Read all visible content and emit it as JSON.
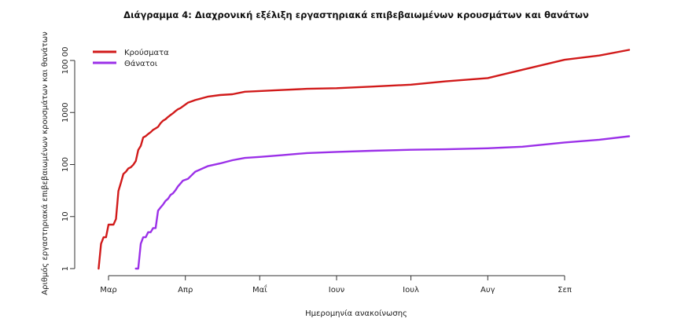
{
  "chart_data": {
    "type": "line",
    "title": "Διάγραμμα 4: Διαχρονική εξέλιξη εργαστηριακά επιβεβαιωμένων κρουσμάτων και θανάτων",
    "xlabel": "Ημερομηνία ανακοίνωσης",
    "ylabel": "Αριθμός εργαστηριακά επιβεβαιωμένων κρουσμάτων και θανάτων",
    "y_scale": "log",
    "ylim": [
      0.8,
      16000
    ],
    "y_ticks": [
      1,
      10,
      100,
      1000,
      10000
    ],
    "y_tick_labels": [
      "1",
      "10",
      "100",
      "1000",
      "100 00"
    ],
    "x_ticks": [
      "2020-03-01",
      "2020-04-01",
      "2020-05-01",
      "2020-06-01",
      "2020-07-01",
      "2020-08-01",
      "2020-09-01"
    ],
    "x_tick_labels": [
      "Μαρ",
      "Απρ",
      "Μαΐ",
      "Ιουν",
      "Ιουλ",
      "Αυγ",
      "Σεπ"
    ],
    "xlim": [
      "2020-02-24",
      "2020-09-30"
    ],
    "grid": false,
    "legend": "top-left",
    "series": [
      {
        "name": "Κρούσματα",
        "color": "#d11a1a",
        "points": [
          [
            "2020-02-26",
            1
          ],
          [
            "2020-02-27",
            3
          ],
          [
            "2020-02-28",
            4
          ],
          [
            "2020-02-29",
            4
          ],
          [
            "2020-03-01",
            7
          ],
          [
            "2020-03-03",
            7
          ],
          [
            "2020-03-04",
            9
          ],
          [
            "2020-03-05",
            31
          ],
          [
            "2020-03-06",
            45
          ],
          [
            "2020-03-07",
            66
          ],
          [
            "2020-03-08",
            73
          ],
          [
            "2020-03-09",
            84
          ],
          [
            "2020-03-10",
            89
          ],
          [
            "2020-03-11",
            99
          ],
          [
            "2020-03-12",
            117
          ],
          [
            "2020-03-13",
            190
          ],
          [
            "2020-03-14",
            228
          ],
          [
            "2020-03-15",
            331
          ],
          [
            "2020-03-16",
            352
          ],
          [
            "2020-03-17",
            387
          ],
          [
            "2020-03-18",
            418
          ],
          [
            "2020-03-19",
            464
          ],
          [
            "2020-03-20",
            495
          ],
          [
            "2020-03-21",
            530
          ],
          [
            "2020-03-22",
            624
          ],
          [
            "2020-03-23",
            695
          ],
          [
            "2020-03-24",
            743
          ],
          [
            "2020-03-25",
            821
          ],
          [
            "2020-03-26",
            892
          ],
          [
            "2020-03-27",
            966
          ],
          [
            "2020-03-28",
            1061
          ],
          [
            "2020-03-29",
            1156
          ],
          [
            "2020-03-30",
            1212
          ],
          [
            "2020-03-31",
            1314
          ],
          [
            "2020-04-02",
            1544
          ],
          [
            "2020-04-05",
            1735
          ],
          [
            "2020-04-10",
            2011
          ],
          [
            "2020-04-15",
            2170
          ],
          [
            "2020-04-20",
            2245
          ],
          [
            "2020-04-25",
            2506
          ],
          [
            "2020-05-01",
            2591
          ],
          [
            "2020-05-10",
            2710
          ],
          [
            "2020-05-20",
            2850
          ],
          [
            "2020-06-01",
            2937
          ],
          [
            "2020-06-15",
            3148
          ],
          [
            "2020-07-01",
            3432
          ],
          [
            "2020-07-15",
            3964
          ],
          [
            "2020-08-01",
            4587
          ],
          [
            "2020-08-15",
            6632
          ],
          [
            "2020-09-01",
            10317
          ],
          [
            "2020-09-15",
            12452
          ],
          [
            "2020-09-27",
            16000
          ]
        ]
      },
      {
        "name": "Θάνατοι",
        "color": "#9b30e8",
        "points": [
          [
            "2020-03-12",
            1
          ],
          [
            "2020-03-13",
            1
          ],
          [
            "2020-03-14",
            3
          ],
          [
            "2020-03-15",
            4
          ],
          [
            "2020-03-16",
            4
          ],
          [
            "2020-03-17",
            5
          ],
          [
            "2020-03-18",
            5
          ],
          [
            "2020-03-19",
            6
          ],
          [
            "2020-03-20",
            6
          ],
          [
            "2020-03-21",
            13
          ],
          [
            "2020-03-22",
            15
          ],
          [
            "2020-03-23",
            17
          ],
          [
            "2020-03-24",
            20
          ],
          [
            "2020-03-25",
            22
          ],
          [
            "2020-03-26",
            26
          ],
          [
            "2020-03-27",
            28
          ],
          [
            "2020-03-28",
            32
          ],
          [
            "2020-03-29",
            38
          ],
          [
            "2020-03-30",
            43
          ],
          [
            "2020-03-31",
            49
          ],
          [
            "2020-04-02",
            53
          ],
          [
            "2020-04-05",
            73
          ],
          [
            "2020-04-10",
            93
          ],
          [
            "2020-04-15",
            105
          ],
          [
            "2020-04-20",
            121
          ],
          [
            "2020-04-25",
            134
          ],
          [
            "2020-05-01",
            140
          ],
          [
            "2020-05-10",
            151
          ],
          [
            "2020-05-20",
            166
          ],
          [
            "2020-06-01",
            175
          ],
          [
            "2020-06-15",
            184
          ],
          [
            "2020-07-01",
            192
          ],
          [
            "2020-07-15",
            196
          ],
          [
            "2020-08-01",
            205
          ],
          [
            "2020-08-15",
            220
          ],
          [
            "2020-09-01",
            266
          ],
          [
            "2020-09-15",
            300
          ],
          [
            "2020-09-27",
            350
          ]
        ]
      }
    ]
  }
}
